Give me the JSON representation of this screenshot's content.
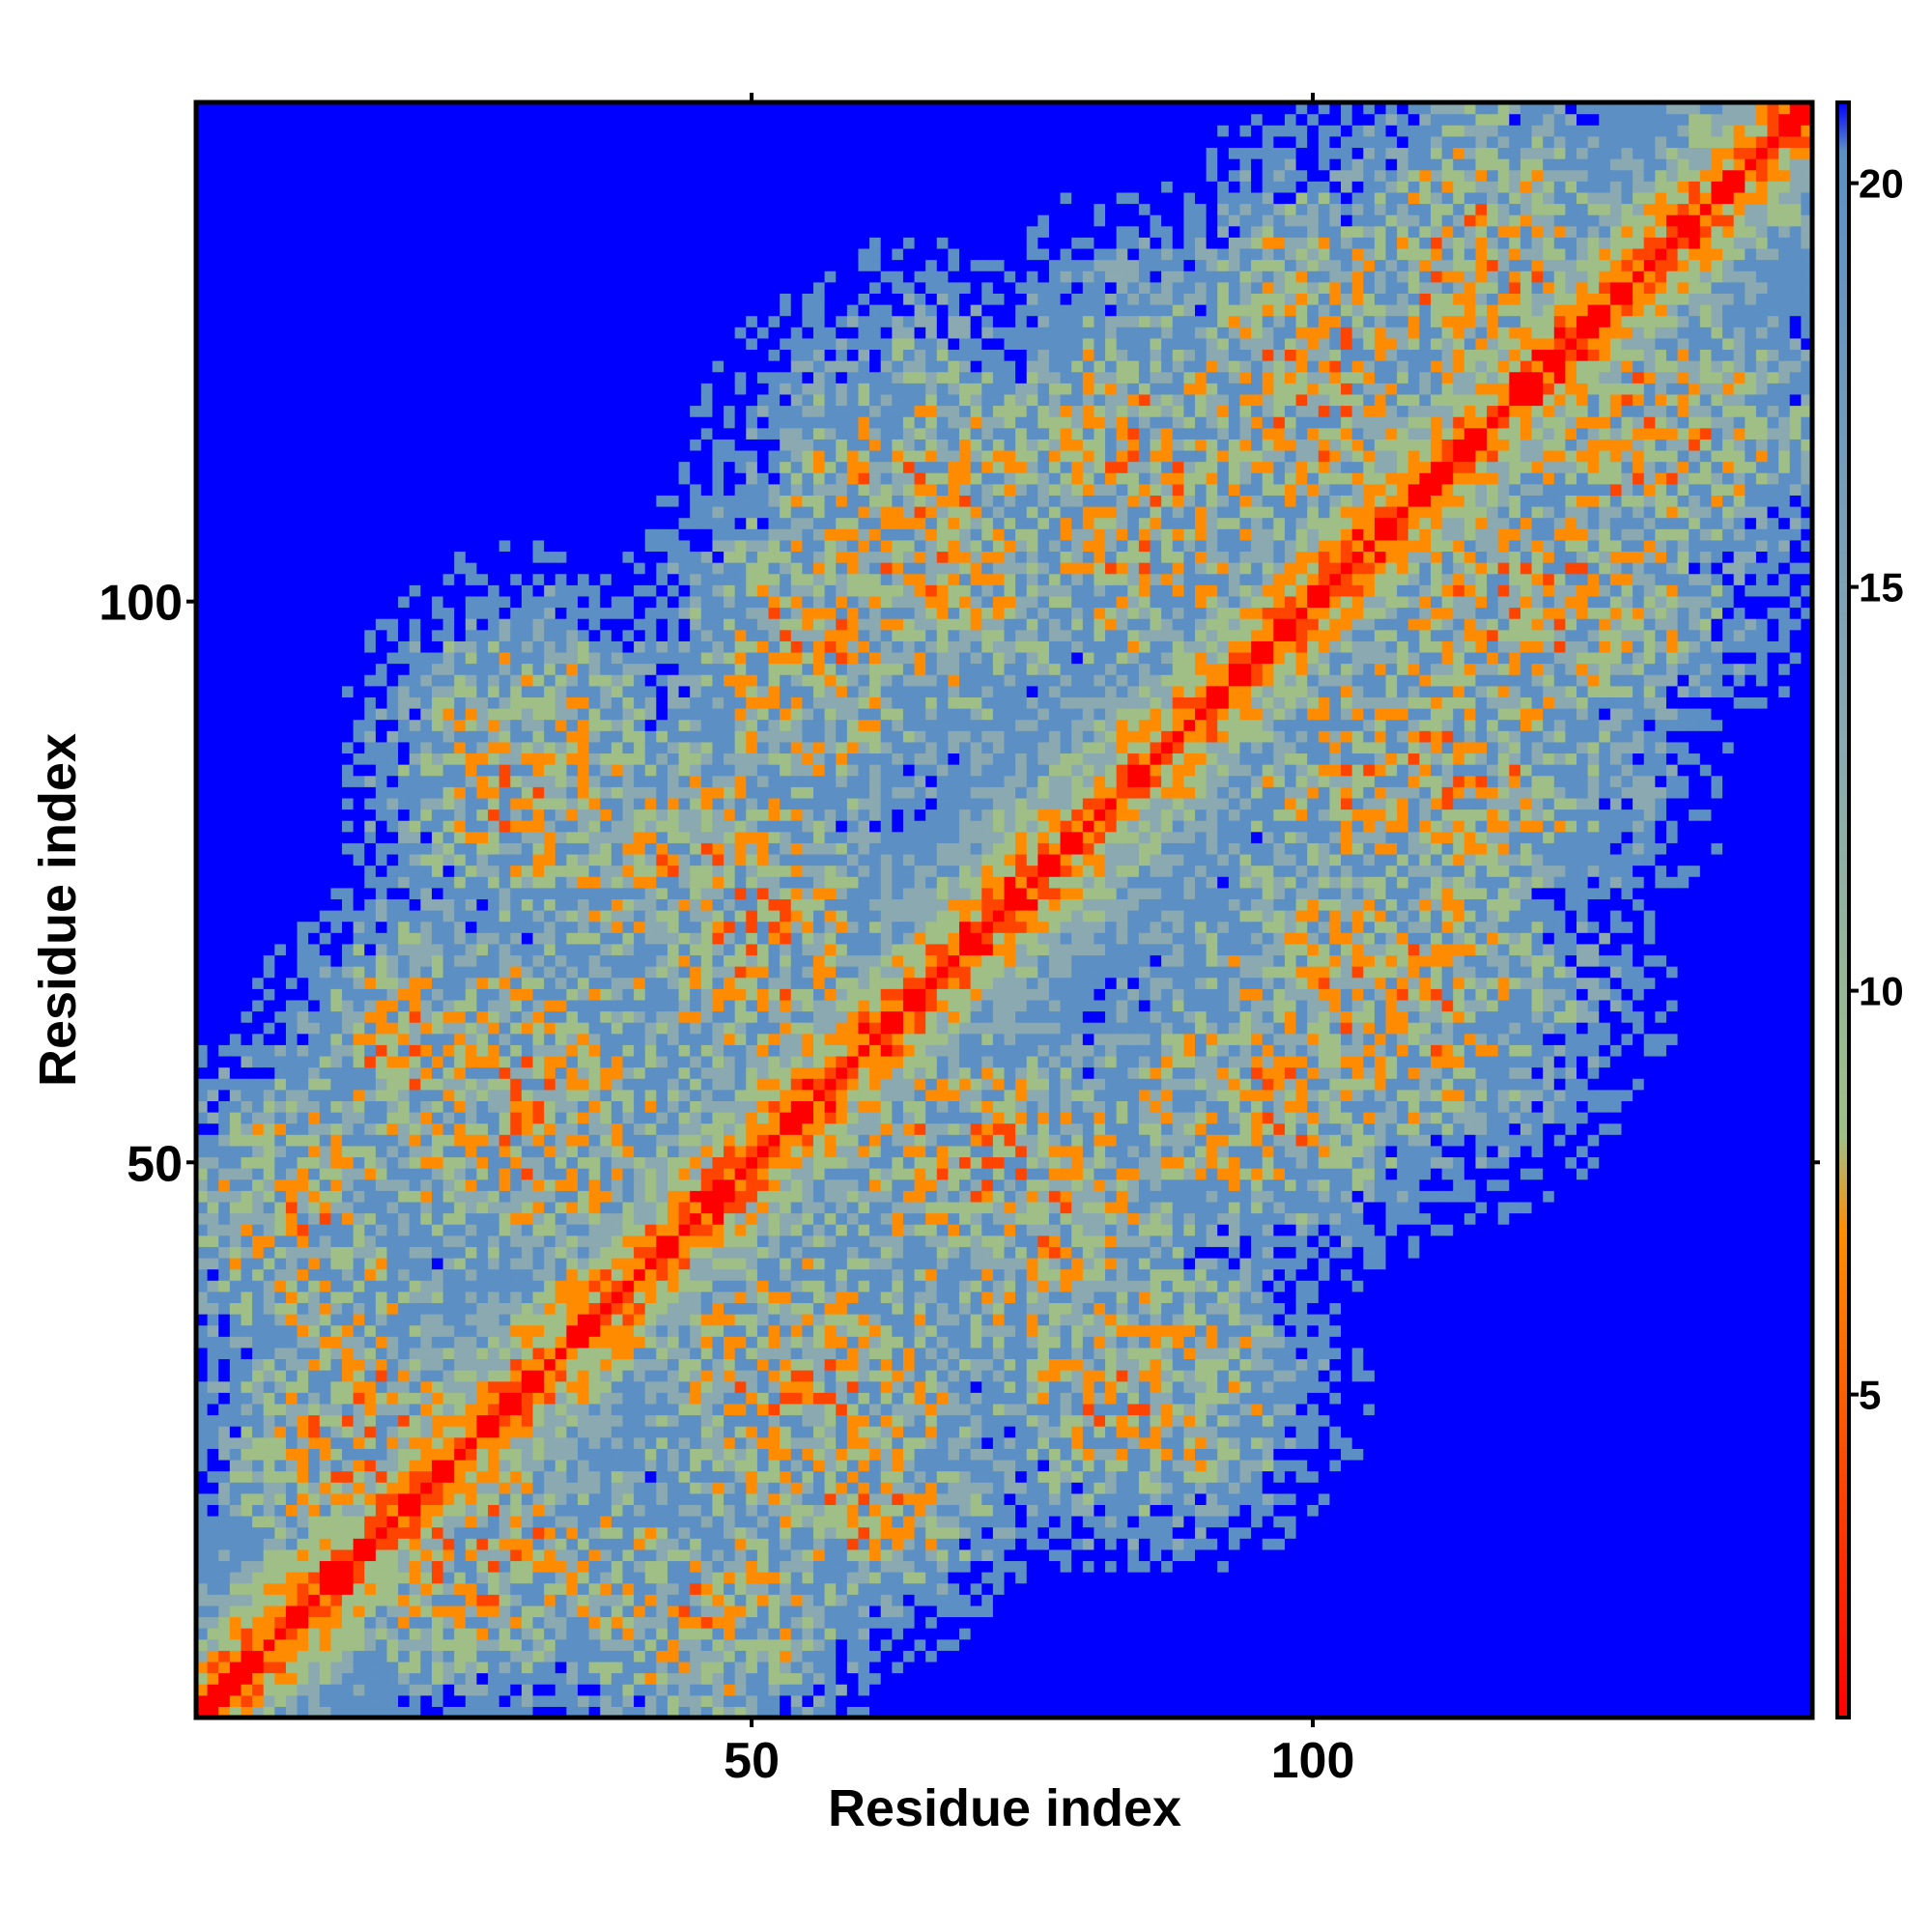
{
  "chart_data": {
    "type": "heatmap",
    "title": "",
    "xlabel": "Residue index",
    "ylabel": "Residue index",
    "xlim": [
      1,
      144
    ],
    "ylim": [
      1,
      144
    ],
    "x_ticks": [
      "50",
      "100"
    ],
    "y_ticks": [
      "50",
      "100"
    ],
    "colorbar": {
      "ticks": [
        "5",
        "10",
        "15",
        "20"
      ],
      "range": [
        1,
        21
      ],
      "colors": [
        "#ff0000",
        "#ff8c00",
        "#9fbf87",
        "#5c8fc4",
        "#0000ff"
      ]
    },
    "n_residues": 144,
    "matrix_note": "symmetric residue-residue distance map; distance small along diagonal, large (blue) far from it"
  }
}
